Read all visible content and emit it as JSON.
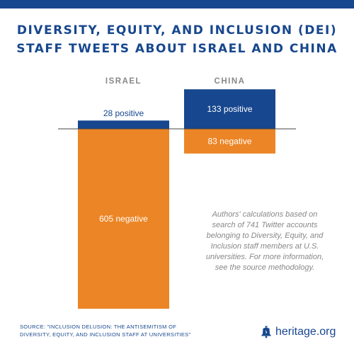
{
  "title_lines": [
    "DIVERSITY, EQUITY, AND INCLUSION (DEI)",
    "STAFF TWEETS ABOUT ISRAEL AND CHINA"
  ],
  "note": "Authors' calculations based on search of 741 Twitter accounts belonging to Diversity, Equity, and Inclusion staff members at U.S. universities. For more information, see the source methodology.",
  "source_lines": [
    "SOURCE: \"INCLUSION DELUSION: THE ANTISEMITISM OF",
    "DIVERSITY, EQUITY, AND INCLUSION STAFF AT UNIVERSITIES\""
  ],
  "logo": {
    "text": "heritage.org",
    "icon": "liberty-bell-icon"
  },
  "colors": {
    "positive": "#17478e",
    "negative": "#ec8525",
    "header": "#888888",
    "accent": "#17478e"
  },
  "chart_data": {
    "type": "bar",
    "categories": [
      "ISRAEL",
      "CHINA"
    ],
    "series": [
      {
        "name": "positive",
        "values": [
          28,
          133
        ],
        "labels": [
          "28 positive",
          "133 positive"
        ]
      },
      {
        "name": "negative",
        "values": [
          605,
          83
        ],
        "labels": [
          "605 negative",
          "83 negative"
        ]
      }
    ],
    "xlabel": "",
    "ylabel": "",
    "grid": false
  }
}
